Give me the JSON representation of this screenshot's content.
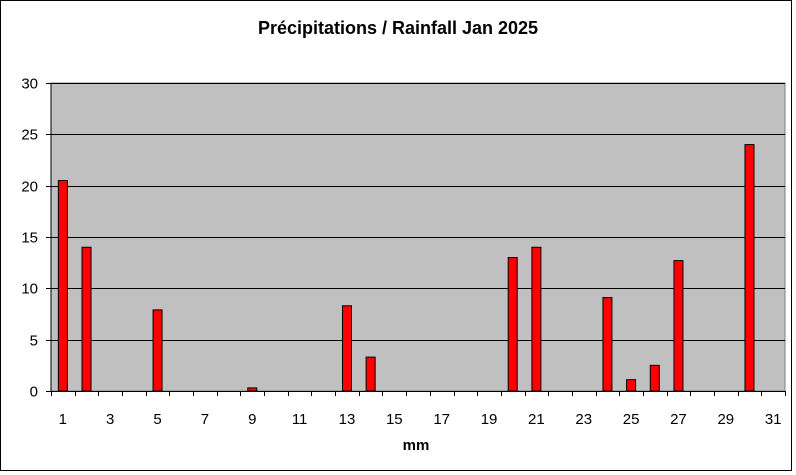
{
  "chart_data": {
    "type": "bar",
    "title": "Précipitations / Rainfall Jan 2025",
    "xlabel": "mm",
    "ylabel": "",
    "ylim": [
      0,
      30
    ],
    "yticks": [
      0,
      5,
      10,
      15,
      20,
      25,
      30
    ],
    "xtick_labels": [
      "1",
      "3",
      "5",
      "7",
      "9",
      "11",
      "13",
      "15",
      "17",
      "19",
      "21",
      "23",
      "25",
      "27",
      "29",
      "31"
    ],
    "grid": true,
    "legend": "none",
    "categories": [
      1,
      2,
      3,
      4,
      5,
      6,
      7,
      8,
      9,
      10,
      11,
      12,
      13,
      14,
      15,
      16,
      17,
      18,
      19,
      20,
      21,
      22,
      23,
      24,
      25,
      26,
      27,
      28,
      29,
      30,
      31
    ],
    "values": [
      20.5,
      14,
      0,
      0,
      7.9,
      0,
      0,
      0,
      0.3,
      0,
      0,
      0,
      8.3,
      3.3,
      0,
      0,
      0,
      0,
      0,
      13,
      14,
      0,
      0,
      9.1,
      1.1,
      2.5,
      12.7,
      0,
      0,
      24,
      0
    ],
    "colors": {
      "bar_fill": "#ff0000",
      "bar_stroke": "#000000",
      "plot_background": "#c0c0c0",
      "gridline": "#000000"
    }
  }
}
